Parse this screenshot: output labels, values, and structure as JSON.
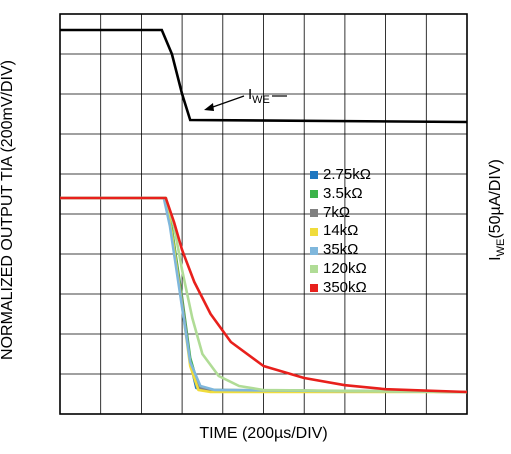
{
  "chart_data": {
    "type": "line",
    "xlabel": "TIME (200µs/DIV)",
    "ylabel_left": "NORMALIZED OUTPUT TIA (200mV/DIV)",
    "ylabel_right_main": "I",
    "ylabel_right_sub": "WE",
    "ylabel_right_unit": "(50µA/DIV)",
    "annotation": {
      "main": "I",
      "sub": "WE"
    },
    "grid": true,
    "x_divisions": 10,
    "y_divisions": 10,
    "xlim": [
      0,
      10
    ],
    "ylim": [
      0,
      10
    ],
    "legend_position": "right-center",
    "iwe_trace": {
      "name": "IWE",
      "color": "#000000",
      "x": [
        0,
        2.5,
        2.75,
        3.0,
        3.2,
        10
      ],
      "y": [
        9.6,
        9.6,
        9.0,
        8.0,
        7.35,
        7.3
      ]
    },
    "series": [
      {
        "name": "2.75kΩ",
        "color": "#1f77c0",
        "x": [
          0,
          2.6,
          2.75,
          3.0,
          3.2,
          3.35,
          3.6,
          10
        ],
        "y": [
          5.4,
          5.4,
          4.6,
          2.8,
          1.3,
          0.65,
          0.6,
          0.55
        ]
      },
      {
        "name": "3.5kΩ",
        "color": "#3cb34a",
        "x": [
          0,
          2.6,
          2.75,
          3.0,
          3.2,
          3.4,
          3.7,
          10
        ],
        "y": [
          5.4,
          5.4,
          4.6,
          2.9,
          1.4,
          0.7,
          0.6,
          0.55
        ]
      },
      {
        "name": "7kΩ",
        "color": "#808080",
        "x": [
          0,
          2.6,
          2.75,
          3.0,
          3.2,
          3.4,
          3.7,
          10
        ],
        "y": [
          5.4,
          5.4,
          4.5,
          2.8,
          1.3,
          0.65,
          0.6,
          0.55
        ]
      },
      {
        "name": "14kΩ",
        "color": "#f0dc3c",
        "x": [
          0,
          2.6,
          2.75,
          3.0,
          3.2,
          3.4,
          3.7,
          10
        ],
        "y": [
          5.4,
          5.4,
          4.5,
          2.7,
          1.2,
          0.6,
          0.55,
          0.55
        ]
      },
      {
        "name": "35kΩ",
        "color": "#7fb7dc",
        "x": [
          0,
          2.55,
          2.7,
          2.95,
          3.2,
          3.45,
          3.8,
          10
        ],
        "y": [
          5.4,
          5.4,
          4.7,
          3.0,
          1.3,
          0.7,
          0.6,
          0.55
        ]
      },
      {
        "name": "120kΩ",
        "color": "#b0dc96",
        "x": [
          0,
          2.6,
          2.8,
          3.0,
          3.25,
          3.5,
          3.9,
          4.4,
          5.0,
          10
        ],
        "y": [
          5.4,
          5.4,
          4.7,
          3.6,
          2.4,
          1.5,
          0.95,
          0.7,
          0.6,
          0.55
        ]
      },
      {
        "name": "350kΩ",
        "color": "#e8201c",
        "x": [
          0,
          2.6,
          2.8,
          3.0,
          3.3,
          3.7,
          4.2,
          5.0,
          6.0,
          7.0,
          8.0,
          10
        ],
        "y": [
          5.4,
          5.4,
          4.8,
          4.1,
          3.3,
          2.5,
          1.8,
          1.2,
          0.9,
          0.72,
          0.62,
          0.55
        ]
      }
    ]
  }
}
